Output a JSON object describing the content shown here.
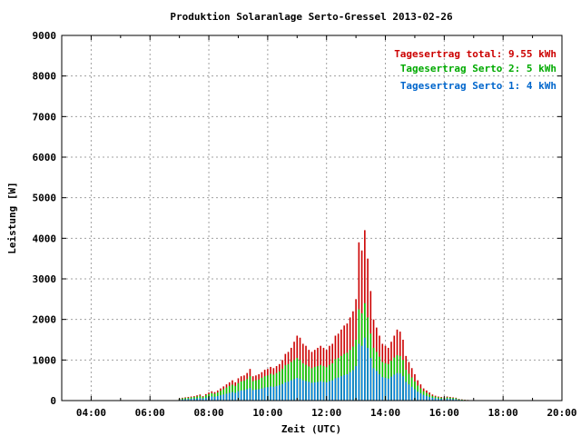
{
  "chart_data": {
    "type": "bar",
    "title": "Produktion Solaranlage Serto-Gressel 2013-02-26",
    "xlabel": "Zeit (UTC)",
    "ylabel": "Leistung [W]",
    "xlim": [
      3.0,
      20.0
    ],
    "ylim": [
      0,
      9000
    ],
    "grid": true,
    "xticks": [
      4,
      6,
      8,
      10,
      12,
      14,
      16,
      18,
      20
    ],
    "xtick_labels": [
      "04:00",
      "06:00",
      "08:00",
      "10:00",
      "12:00",
      "14:00",
      "16:00",
      "18:00",
      "20:00"
    ],
    "yticks": [
      0,
      1000,
      2000,
      3000,
      4000,
      5000,
      6000,
      7000,
      8000,
      9000
    ],
    "ytick_labels": [
      "0",
      "1000",
      "2000",
      "3000",
      "4000",
      "5000",
      "6000",
      "7000",
      "8000",
      "9000"
    ],
    "legend_placement": "top-right",
    "legend": [
      {
        "label": "Tagesertrag total: 9.55 kWh",
        "color": "#cc0000"
      },
      {
        "label": "Tagesertrag Serto 2: 5 kWh",
        "color": "#00aa00"
      },
      {
        "label": "Tagesertrag Serto 1: 4 kWh",
        "color": "#0066cc"
      }
    ],
    "series_colors": {
      "total": "#cc0000",
      "serto2": "#00cc00",
      "serto1": "#0080e0"
    },
    "x_hours": [
      7.0,
      7.1,
      7.2,
      7.3,
      7.4,
      7.5,
      7.6,
      7.7,
      7.8,
      7.9,
      8.0,
      8.1,
      8.2,
      8.3,
      8.4,
      8.5,
      8.6,
      8.7,
      8.8,
      8.9,
      9.0,
      9.1,
      9.2,
      9.3,
      9.4,
      9.5,
      9.6,
      9.7,
      9.8,
      9.9,
      10.0,
      10.1,
      10.2,
      10.3,
      10.4,
      10.5,
      10.6,
      10.7,
      10.8,
      10.9,
      11.0,
      11.1,
      11.2,
      11.3,
      11.4,
      11.5,
      11.6,
      11.7,
      11.8,
      11.9,
      12.0,
      12.1,
      12.2,
      12.3,
      12.4,
      12.5,
      12.6,
      12.7,
      12.8,
      12.9,
      13.0,
      13.1,
      13.2,
      13.3,
      13.4,
      13.5,
      13.6,
      13.7,
      13.8,
      13.9,
      14.0,
      14.1,
      14.2,
      14.3,
      14.4,
      14.5,
      14.6,
      14.7,
      14.8,
      14.9,
      15.0,
      15.1,
      15.2,
      15.3,
      15.4,
      15.5,
      15.6,
      15.7,
      15.8,
      15.9,
      16.0,
      16.1,
      16.2,
      16.3,
      16.4,
      16.5,
      16.6,
      16.7,
      16.8
    ],
    "total": [
      50,
      70,
      80,
      90,
      100,
      110,
      130,
      150,
      110,
      160,
      200,
      230,
      210,
      250,
      300,
      350,
      400,
      450,
      500,
      450,
      550,
      600,
      620,
      680,
      780,
      600,
      620,
      650,
      700,
      760,
      780,
      830,
      800,
      850,
      900,
      1000,
      1150,
      1200,
      1300,
      1450,
      1600,
      1550,
      1400,
      1350,
      1250,
      1200,
      1250,
      1300,
      1350,
      1300,
      1250,
      1350,
      1400,
      1600,
      1650,
      1750,
      1850,
      1900,
      2050,
      2200,
      2500,
      3900,
      3700,
      4200,
      3500,
      2700,
      2000,
      1800,
      1600,
      1400,
      1350,
      1300,
      1450,
      1600,
      1750,
      1700,
      1500,
      1100,
      950,
      800,
      650,
      500,
      400,
      300,
      250,
      200,
      150,
      120,
      100,
      90,
      80,
      100,
      90,
      80,
      70,
      40,
      30,
      20,
      15
    ],
    "serto2": [
      40,
      55,
      65,
      70,
      80,
      90,
      100,
      120,
      90,
      130,
      160,
      180,
      170,
      200,
      240,
      280,
      320,
      360,
      390,
      360,
      430,
      470,
      490,
      530,
      600,
      480,
      500,
      520,
      560,
      600,
      620,
      660,
      640,
      680,
      720,
      780,
      870,
      900,
      950,
      1000,
      1050,
      1000,
      920,
      880,
      840,
      800,
      830,
      850,
      880,
      850,
      820,
      880,
      920,
      1020,
      1050,
      1100,
      1150,
      1180,
      1250,
      1330,
      1500,
      2250,
      2150,
      2400,
      2050,
      1650,
      1300,
      1200,
      1080,
      950,
      920,
      900,
      980,
      1060,
      1120,
      1100,
      1000,
      760,
      660,
      570,
      470,
      370,
      300,
      230,
      190,
      150,
      115,
      95,
      80,
      72,
      65,
      80,
      72,
      65,
      56,
      32,
      24,
      16,
      12
    ],
    "serto1": [
      20,
      30,
      35,
      40,
      45,
      50,
      55,
      65,
      50,
      70,
      90,
      100,
      95,
      110,
      130,
      150,
      170,
      190,
      210,
      190,
      230,
      250,
      260,
      280,
      310,
      260,
      270,
      280,
      300,
      320,
      330,
      350,
      340,
      360,
      380,
      410,
      450,
      470,
      500,
      530,
      560,
      540,
      500,
      480,
      460,
      440,
      450,
      460,
      480,
      460,
      450,
      480,
      500,
      550,
      570,
      600,
      630,
      650,
      700,
      750,
      850,
      1400,
      1350,
      1550,
      1300,
      1050,
      800,
      730,
      650,
      580,
      560,
      540,
      590,
      640,
      680,
      670,
      600,
      460,
      400,
      340,
      280,
      220,
      180,
      140,
      115,
      90,
      70,
      58,
      48,
      43,
      38,
      48,
      43,
      38,
      34,
      19,
      14,
      10,
      7
    ]
  }
}
